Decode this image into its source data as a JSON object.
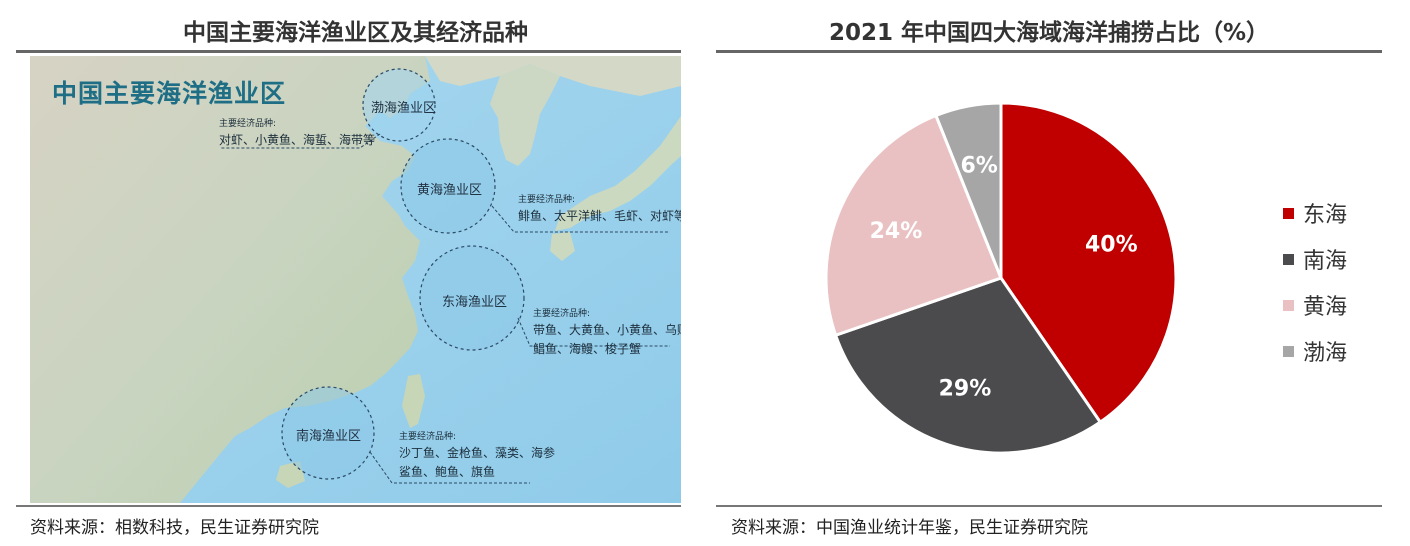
{
  "left_panel": {
    "title": "中国主要海洋渔业区及其经济品种",
    "map": {
      "heading": "中国主要海洋渔业区",
      "zones": [
        {
          "name": "渤海渔业区",
          "species_caption": "主要经济品种:",
          "species_lines": [
            "对虾、小黄鱼、海蜇、海带等"
          ]
        },
        {
          "name": "黄海渔业区",
          "species_caption": "主要经济品种:",
          "species_lines": [
            "鲱鱼、太平洋鲱、毛虾、对虾等"
          ]
        },
        {
          "name": "东海渔业区",
          "species_caption": "主要经济品种:",
          "species_lines": [
            "带鱼、大黄鱼、小黄鱼、乌贼",
            "鲳鱼、海鳗、梭子蟹"
          ]
        },
        {
          "name": "南海渔业区",
          "species_caption": "主要经济品种:",
          "species_lines": [
            "沙丁鱼、金枪鱼、藻类、海参",
            "鲨鱼、鲍鱼、旗鱼"
          ]
        }
      ]
    },
    "source": "资料来源：相数科技，民生证券研究院"
  },
  "right_panel": {
    "title": "2021 年中国四大海域海洋捕捞占比（%）",
    "source": "资料来源：中国渔业统计年鉴，民生证券研究院"
  },
  "chart_data": {
    "type": "pie",
    "title": "2021 年中国四大海域海洋捕捞占比（%）",
    "categories": [
      "东海",
      "南海",
      "黄海",
      "渤海"
    ],
    "values": [
      40,
      29,
      24,
      6
    ],
    "labels": [
      "40%",
      "29%",
      "24%",
      "6%"
    ],
    "colors": [
      "#c00000",
      "#4b4b4d",
      "#eac1c2",
      "#a6a6a6"
    ],
    "label_colors": [
      "#ffffff",
      "#ffffff",
      "#ffffff",
      "#ffffff"
    ],
    "legend_position": "right"
  }
}
